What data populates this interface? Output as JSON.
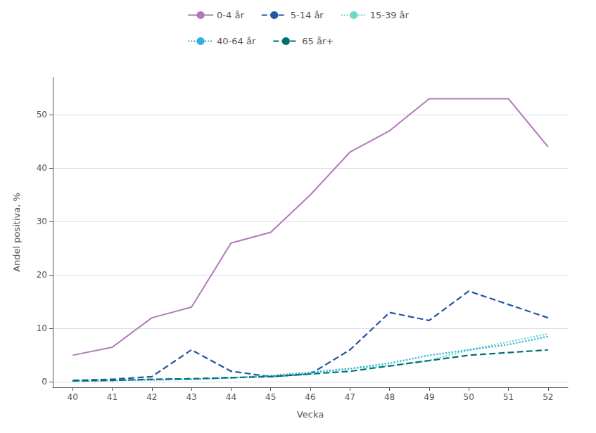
{
  "chart_data": {
    "type": "line",
    "xlabel": "Vecka",
    "ylabel": "Andel positiva, %",
    "x": [
      40,
      41,
      42,
      43,
      44,
      45,
      46,
      47,
      48,
      49,
      50,
      51,
      52
    ],
    "series": [
      {
        "name": "0-4 år",
        "color": "#b07ab8",
        "line_style": "solid",
        "values": [
          5.0,
          6.5,
          12.0,
          14.0,
          26.0,
          28.0,
          35.0,
          43.0,
          47.0,
          53.0,
          53.0,
          53.0,
          44.0
        ]
      },
      {
        "name": "5-14 år",
        "color": "#2255a4",
        "line_style": "dashed",
        "values": [
          0.3,
          0.5,
          1.0,
          6.0,
          2.0,
          1.0,
          1.5,
          6.0,
          13.0,
          11.5,
          17.0,
          14.5,
          12.0
        ]
      },
      {
        "name": "15-39 år",
        "color": "#70d8c8",
        "line_style": "dotted",
        "values": [
          0.2,
          0.3,
          0.4,
          0.5,
          0.8,
          1.0,
          1.5,
          2.5,
          3.0,
          4.0,
          6.0,
          7.5,
          9.0
        ]
      },
      {
        "name": "40-64 år",
        "color": "#30b0e0",
        "line_style": "dotted",
        "values": [
          0.2,
          0.3,
          0.4,
          0.5,
          0.8,
          1.2,
          1.8,
          2.5,
          3.5,
          5.0,
          6.0,
          7.0,
          8.5
        ]
      },
      {
        "name": "65 år+",
        "color": "#007070",
        "line_style": "dashed",
        "values": [
          0.2,
          0.3,
          0.5,
          0.6,
          0.8,
          1.0,
          1.5,
          2.0,
          3.0,
          4.0,
          5.0,
          5.5,
          6.0
        ]
      }
    ],
    "xlim": [
      39.5,
      52.5
    ],
    "xticks": [
      40,
      41,
      42,
      43,
      44,
      45,
      46,
      47,
      48,
      49,
      50,
      51,
      52
    ],
    "ylim": [
      -1,
      57
    ],
    "yticks": [
      0,
      10,
      20,
      30,
      40,
      50
    ],
    "grid": true,
    "legend": "top"
  }
}
